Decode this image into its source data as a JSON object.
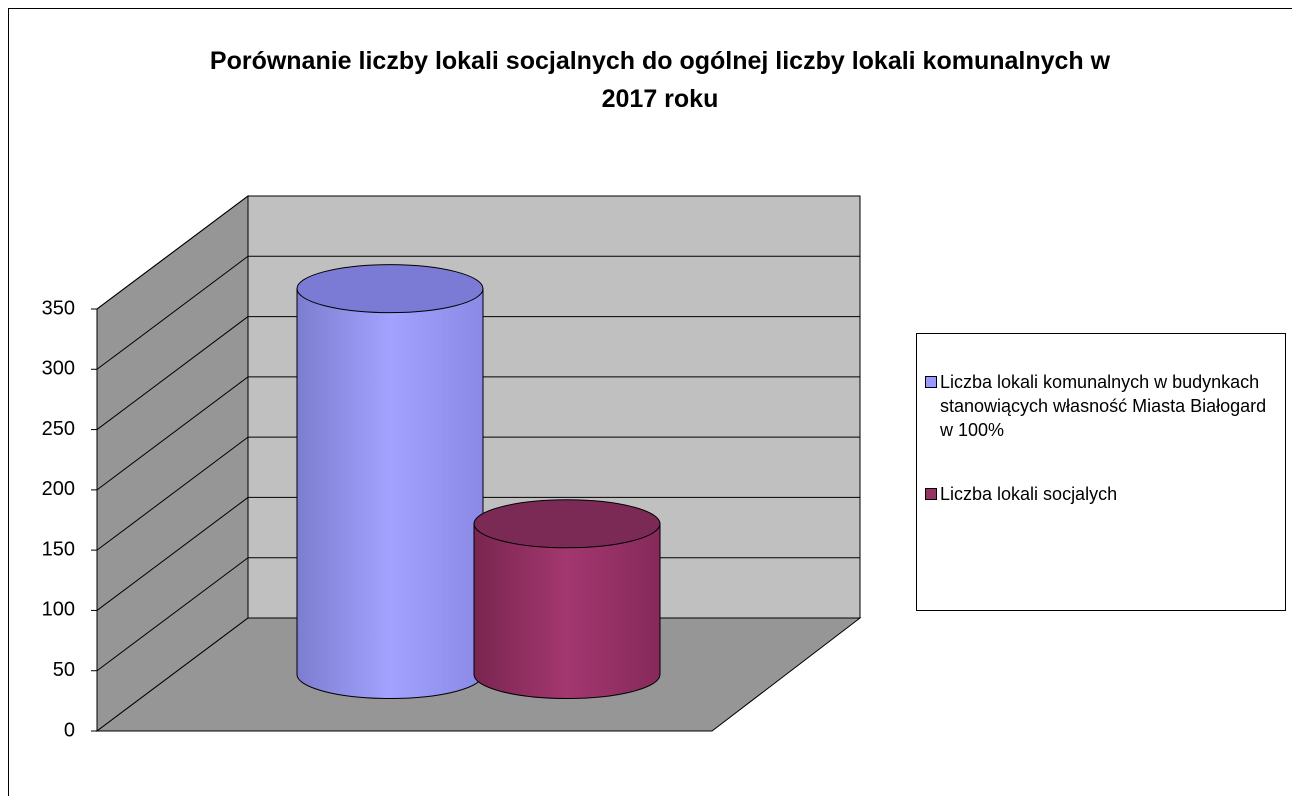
{
  "chart_data": {
    "type": "bar3d",
    "title": "Porównanie liczby lokali socjalnych do ogólnej liczby lokali komunalnych  w 2017 roku",
    "categories": [
      null
    ],
    "series": [
      {
        "name": "Liczba lokali komunalnych w budynkach stanowiących własność Miasta Białogard w 100%",
        "color": "#9999ff",
        "values": [
          320
        ]
      },
      {
        "name": "Liczba lokali socjalych",
        "color": "#993366",
        "values": [
          125
        ]
      }
    ],
    "ylim": [
      0,
      350
    ],
    "yticks": [
      0,
      50,
      100,
      150,
      200,
      250,
      300,
      350
    ],
    "grid": true,
    "legend": "right"
  }
}
